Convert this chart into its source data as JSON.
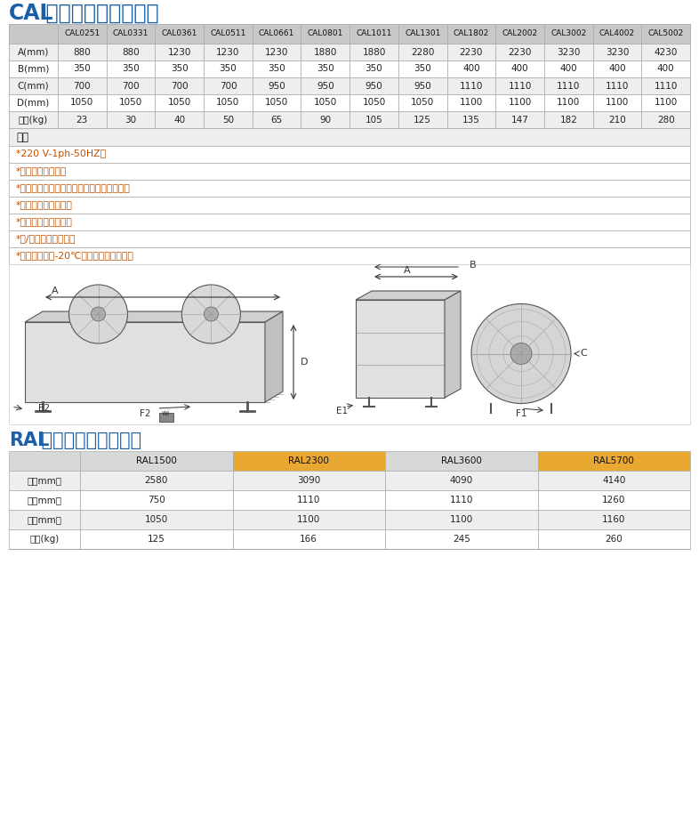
{
  "title1_bold": "CAL",
  "title1_rest": " 系列冷凝器技术参数",
  "title2_bold": "RAL",
  "title2_rest": " 系列干冷器技术参数",
  "cal_headers": [
    "",
    "CAL0251",
    "CAL0331",
    "CAL0361",
    "CAL0511",
    "CAL0661",
    "CAL0801",
    "CAL1011",
    "CAL1301",
    "CAL1802",
    "CAL2002",
    "CAL3002",
    "CAL4002",
    "CAL5002"
  ],
  "cal_rows": [
    [
      "A(mm)",
      "880",
      "880",
      "1230",
      "1230",
      "1230",
      "1880",
      "1880",
      "2280",
      "2230",
      "2230",
      "3230",
      "3230",
      "4230"
    ],
    [
      "B(mm)",
      "350",
      "350",
      "350",
      "350",
      "350",
      "350",
      "350",
      "350",
      "400",
      "400",
      "400",
      "400",
      "400"
    ],
    [
      "C(mm)",
      "700",
      "700",
      "700",
      "700",
      "950",
      "950",
      "950",
      "950",
      "1110",
      "1110",
      "1110",
      "1110",
      "1110"
    ],
    [
      "D(mm)",
      "1050",
      "1050",
      "1050",
      "1050",
      "1050",
      "1050",
      "1050",
      "1050",
      "1100",
      "1100",
      "1100",
      "1100",
      "1100"
    ],
    [
      "重量(kg)",
      "23",
      "30",
      "40",
      "50",
      "65",
      "90",
      "105",
      "125",
      "135",
      "147",
      "182",
      "210",
      "280"
    ]
  ],
  "cal_feature_header": "特征",
  "cal_features": [
    "*220 V-1ph-50HZ；",
    "*标配风机调速器；",
    "*真正的变频控制，高效节能无极调速风机；",
    "*水平式的盘管设计；",
    "*低噪音的优化设计；",
    "*单/双制冷回路设计；",
    "*环境温度低于-20℃时，低温套件可选；"
  ],
  "ral_headers": [
    "",
    "RAL1500",
    "RAL2300",
    "RAL3600",
    "RAL5700"
  ],
  "ral_rows": [
    [
      "长（mm）",
      "2580",
      "3090",
      "4090",
      "4140"
    ],
    [
      "宽（mm）",
      "750",
      "1110",
      "1110",
      "1260"
    ],
    [
      "高（mm）",
      "1050",
      "1100",
      "1100",
      "1160"
    ],
    [
      "重量(kg)",
      "125",
      "166",
      "245",
      "260"
    ]
  ],
  "bg_color": "#ffffff",
  "header_bg_dark": "#c8c8c8",
  "header_bg_light": "#e0e0e0",
  "row_bg_even": "#eeeeee",
  "row_bg_odd": "#ffffff",
  "ral_header_orange": "#f5a623",
  "title_color_blue": "#1a5fa8",
  "feature_text_color": "#c05000",
  "cell_text_color": "#222222",
  "border_color": "#aaaaaa",
  "diagram_bg": "#f5f5f5"
}
